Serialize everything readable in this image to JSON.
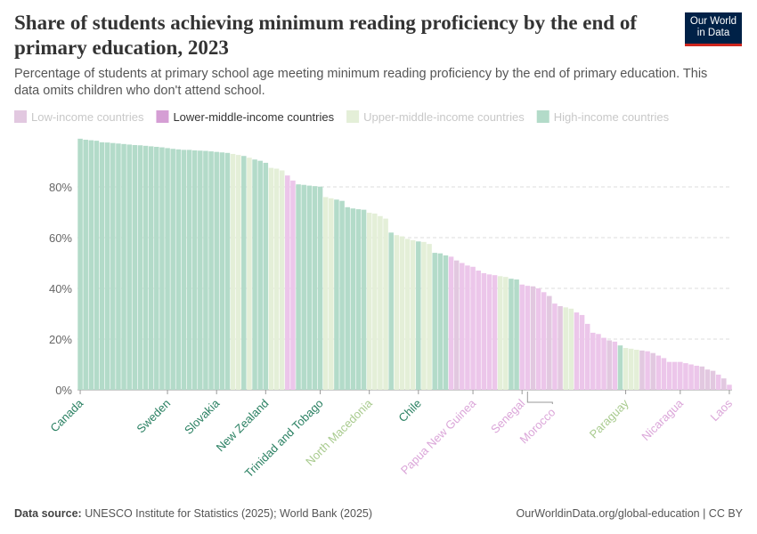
{
  "chart_data": {
    "type": "bar",
    "title": "Share of students achieving minimum reading proficiency by the end of primary education, 2023",
    "subtitle": "Percentage of students at primary school age meeting minimum reading proficiency by the end of primary education. This data omits children who don't attend school.",
    "logo": "Our World in Data",
    "source_label": "Data source:",
    "source": "UNESCO Institute for Statistics (2025); World Bank (2025)",
    "footer_right": "OurWorldinData.org/global-education | CC BY",
    "ylim": [
      0,
      100
    ],
    "yticks": [
      {
        "value": 0,
        "label": "0%"
      },
      {
        "value": 20,
        "label": "20%"
      },
      {
        "value": 40,
        "label": "40%"
      },
      {
        "value": 60,
        "label": "60%"
      },
      {
        "value": 80,
        "label": "80%"
      }
    ],
    "grid": true,
    "highlight_series": 1,
    "categories": [
      "Canada",
      null,
      null,
      null,
      null,
      null,
      null,
      null,
      null,
      null,
      null,
      null,
      null,
      null,
      null,
      null,
      "Sweden",
      null,
      null,
      null,
      null,
      null,
      null,
      null,
      null,
      "Slovakia",
      null,
      null,
      null,
      null,
      null,
      null,
      null,
      null,
      "New Zealand",
      null,
      null,
      null,
      null,
      null,
      null,
      null,
      null,
      null,
      "Trinidad and Tobago",
      null,
      null,
      null,
      null,
      null,
      null,
      null,
      null,
      "North Macedonia",
      null,
      null,
      null,
      null,
      null,
      null,
      null,
      null,
      "Chile",
      null,
      null,
      null,
      null,
      null,
      null,
      null,
      null,
      null,
      "Papua New Guinea",
      null,
      null,
      null,
      null,
      null,
      null,
      null,
      null,
      "Senegal",
      "Morocco",
      null,
      null,
      null,
      null,
      null,
      null,
      null,
      null,
      null,
      null,
      null,
      null,
      null,
      null,
      null,
      null,
      null,
      "Paraguay",
      null,
      null,
      null,
      null,
      null,
      null,
      null,
      null,
      null,
      "Nicaragua",
      null,
      null,
      null,
      null,
      null,
      null,
      null,
      null,
      "Laos"
    ],
    "series": [
      {
        "name": "Low-income countries",
        "color": "#e2c8e0",
        "label_color": "#c98fc7",
        "values": [
          null,
          null,
          null,
          null,
          null,
          null,
          null,
          null,
          null,
          null,
          null,
          null,
          null,
          null,
          null,
          null,
          null,
          null,
          null,
          null,
          null,
          null,
          null,
          null,
          null,
          null,
          null,
          null,
          null,
          null,
          null,
          null,
          null,
          null,
          null,
          null,
          null,
          null,
          null,
          null,
          null,
          null,
          null,
          null,
          null,
          null,
          null,
          null,
          null,
          null,
          null,
          null,
          null,
          null,
          null,
          null,
          null,
          null,
          null,
          null,
          null,
          null,
          null,
          null,
          null,
          null,
          null,
          null,
          null,
          51,
          null,
          null,
          null,
          null,
          null,
          null,
          null,
          null,
          null,
          null,
          null,
          null,
          null,
          40.8,
          null,
          null,
          37,
          null,
          33,
          null,
          null,
          null,
          null,
          null,
          null,
          null,
          null,
          19.5,
          null,
          null,
          null,
          null,
          null,
          15.5,
          null,
          14.5,
          null,
          null,
          null,
          null,
          null,
          null,
          null,
          null,
          9.2,
          8,
          7.5,
          null,
          4.5,
          null
        ]
      },
      {
        "name": "Lower-middle-income countries",
        "color": "#ecc6ea",
        "label_color": "#dba6d9",
        "values": [
          null,
          null,
          null,
          null,
          null,
          null,
          null,
          null,
          null,
          null,
          null,
          null,
          null,
          null,
          null,
          null,
          null,
          null,
          null,
          null,
          null,
          null,
          null,
          null,
          null,
          null,
          null,
          null,
          null,
          null,
          null,
          null,
          null,
          null,
          null,
          null,
          null,
          null,
          84.5,
          82.5,
          null,
          null,
          null,
          null,
          null,
          null,
          null,
          null,
          null,
          null,
          null,
          null,
          null,
          null,
          null,
          null,
          null,
          null,
          null,
          null,
          null,
          null,
          null,
          null,
          null,
          null,
          null,
          null,
          52.5,
          null,
          50,
          49,
          48.5,
          47,
          46,
          45.5,
          45.2,
          null,
          null,
          null,
          null,
          41.5,
          41,
          null,
          40,
          38.5,
          null,
          34,
          null,
          null,
          null,
          30.5,
          29.5,
          26,
          22.5,
          22,
          20.5,
          null,
          19,
          null,
          null,
          null,
          null,
          null,
          15.2,
          null,
          13.5,
          12.5,
          11,
          11,
          11,
          10.5,
          10,
          9.5,
          null,
          null,
          null,
          6,
          null,
          2
        ]
      },
      {
        "name": "Upper-middle-income countries",
        "color": "#e4efd8",
        "label_color": "#a9cb8f",
        "values": [
          null,
          null,
          null,
          null,
          null,
          null,
          null,
          null,
          null,
          null,
          null,
          null,
          null,
          null,
          null,
          null,
          null,
          null,
          null,
          null,
          null,
          null,
          null,
          null,
          null,
          null,
          null,
          null,
          93,
          92.6,
          null,
          91.5,
          null,
          null,
          null,
          87.5,
          87.2,
          86.5,
          null,
          null,
          null,
          null,
          null,
          null,
          null,
          76,
          75.5,
          null,
          null,
          null,
          null,
          null,
          null,
          69.8,
          69.5,
          68.5,
          67.5,
          null,
          61,
          60.5,
          59.5,
          59,
          null,
          58.3,
          57.5,
          null,
          null,
          null,
          null,
          null,
          null,
          null,
          null,
          null,
          null,
          null,
          null,
          44.8,
          44.5,
          null,
          null,
          null,
          null,
          null,
          null,
          null,
          null,
          null,
          null,
          32.5,
          32,
          null,
          null,
          null,
          null,
          null,
          null,
          null,
          null,
          null,
          16.5,
          16.2,
          15.8,
          null,
          null,
          null,
          null,
          null,
          null,
          null,
          null,
          null,
          null,
          null,
          null,
          null,
          null,
          null,
          null,
          null
        ]
      },
      {
        "name": "High-income countries",
        "color": "#b3dbc9",
        "label_color": "#2a8062",
        "values": [
          99,
          98.6,
          98.4,
          98.2,
          97.6,
          97.5,
          97.3,
          97.1,
          96.9,
          96.7,
          96.5,
          96.4,
          96.2,
          96,
          95.8,
          95.6,
          95.3,
          95,
          94.8,
          94.6,
          94.6,
          94.4,
          94.3,
          94.2,
          94,
          93.8,
          93.6,
          93.4,
          null,
          null,
          92.2,
          null,
          90.8,
          90.3,
          89.5,
          null,
          null,
          null,
          null,
          null,
          81,
          80.8,
          80.5,
          80.3,
          80.1,
          null,
          null,
          75,
          74.5,
          72,
          71.5,
          71.2,
          71,
          null,
          null,
          null,
          null,
          62,
          null,
          null,
          null,
          null,
          58.5,
          null,
          null,
          54,
          53.8,
          53,
          null,
          null,
          null,
          null,
          null,
          null,
          null,
          null,
          null,
          null,
          null,
          43.8,
          43.5,
          null,
          null,
          null,
          null,
          null,
          null,
          null,
          null,
          null,
          null,
          null,
          null,
          null,
          null,
          null,
          null,
          null,
          null,
          17.5,
          null,
          null,
          null,
          null,
          null,
          null,
          null,
          null,
          null,
          null,
          null,
          null,
          null,
          null,
          null,
          null,
          null,
          null,
          null,
          null
        ]
      }
    ]
  }
}
